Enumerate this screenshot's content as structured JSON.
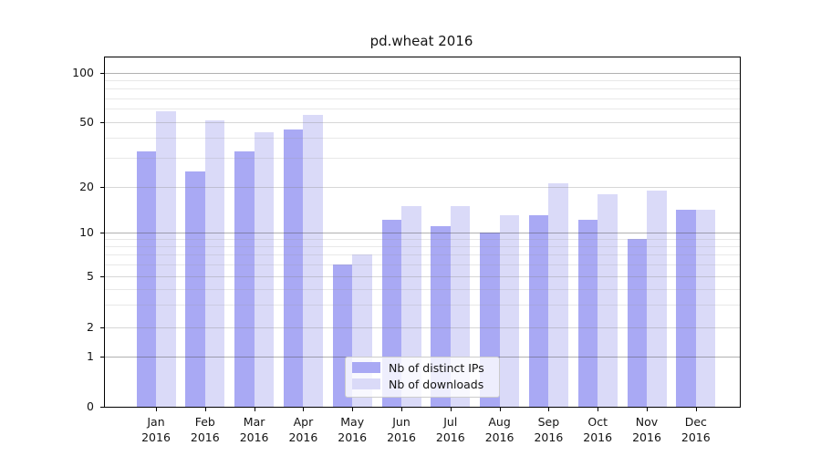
{
  "title": "pd.wheat 2016",
  "legend": {
    "items": [
      {
        "label": "Nb of distinct IPs",
        "color": "#a9a9f4"
      },
      {
        "label": "Nb of downloads",
        "color": "#dadaf8"
      }
    ]
  },
  "axes": {
    "y_tick_values": [
      100,
      50,
      20,
      10,
      5,
      2,
      1,
      0
    ],
    "y_minor_values": [
      3,
      4,
      6,
      7,
      8,
      9,
      30,
      40,
      60,
      70,
      80,
      90
    ],
    "x_months": [
      "Jan",
      "Feb",
      "Mar",
      "Apr",
      "May",
      "Jun",
      "Jul",
      "Aug",
      "Sep",
      "Oct",
      "Nov",
      "Dec"
    ],
    "year": "2016"
  },
  "chart_data": {
    "type": "bar",
    "title": "pd.wheat 2016",
    "categories": [
      "Jan 2016",
      "Feb 2016",
      "Mar 2016",
      "Apr 2016",
      "May 2016",
      "Jun 2016",
      "Jul 2016",
      "Aug 2016",
      "Sep 2016",
      "Oct 2016",
      "Nov 2016",
      "Dec 2016"
    ],
    "series": [
      {
        "name": "Nb of distinct IPs",
        "color": "#a9a9f4",
        "values": [
          33,
          25,
          33,
          45,
          6,
          12,
          11,
          10,
          13,
          12,
          9,
          14
        ]
      },
      {
        "name": "Nb of downloads",
        "color": "#dadaf8",
        "values": [
          58,
          51,
          43,
          55,
          7,
          15,
          15,
          13,
          21,
          18,
          19,
          14
        ]
      }
    ],
    "xlabel": "",
    "ylabel": "",
    "yscale": "symlog",
    "y_ticks": [
      0,
      1,
      2,
      5,
      10,
      20,
      50,
      100
    ],
    "ylim": [
      0,
      130
    ],
    "grid": "both",
    "legend_position": "lower center"
  }
}
